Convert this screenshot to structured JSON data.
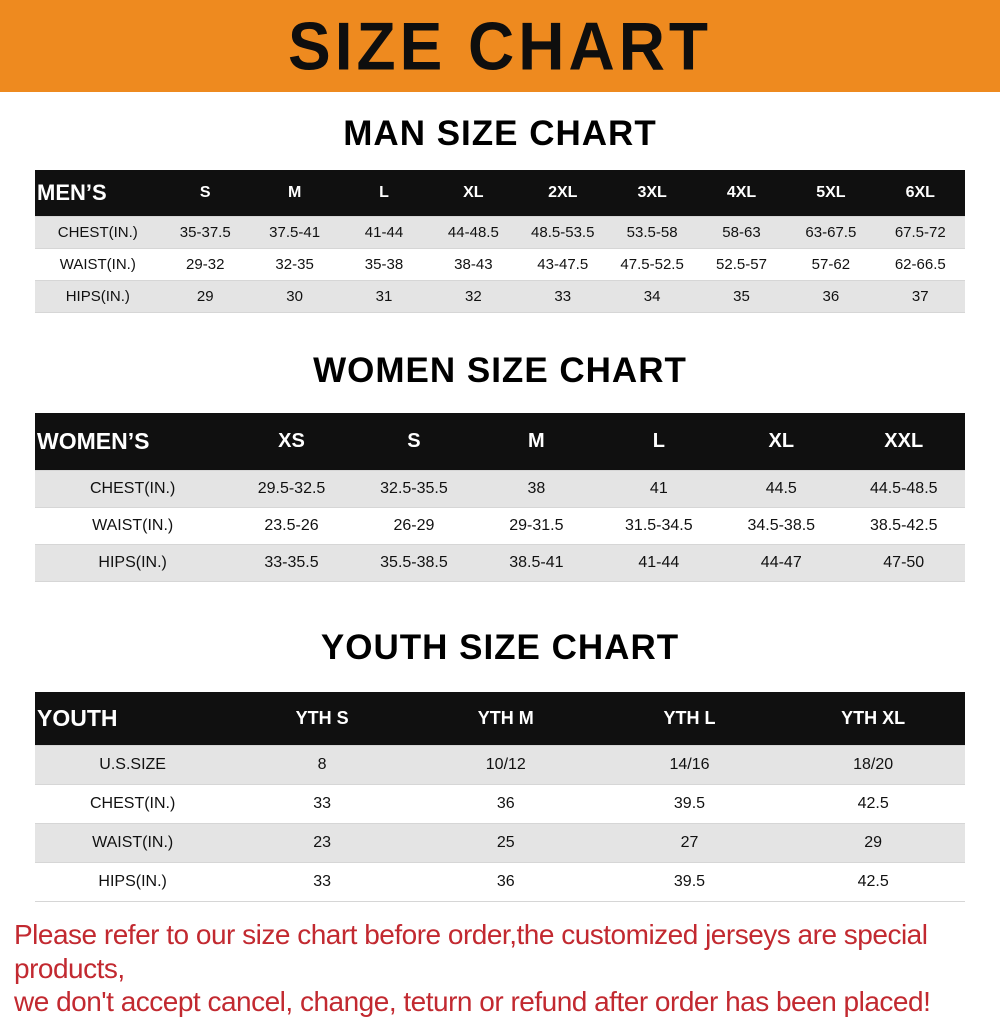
{
  "banner": {
    "title": "SIZE CHART"
  },
  "sections": [
    {
      "heading": "MAN SIZE CHART",
      "table": {
        "header": [
          "MEN’S",
          "S",
          "M",
          "L",
          "XL",
          "2XL",
          "3XL",
          "4XL",
          "5XL",
          "6XL"
        ],
        "rows": [
          [
            "CHEST(IN.)",
            "35-37.5",
            "37.5-41",
            "41-44",
            "44-48.5",
            "48.5-53.5",
            "53.5-58",
            "58-63",
            "63-67.5",
            "67.5-72"
          ],
          [
            "WAIST(IN.)",
            "29-32",
            "32-35",
            "35-38",
            "38-43",
            "43-47.5",
            "47.5-52.5",
            "52.5-57",
            "57-62",
            "62-66.5"
          ],
          [
            "HIPS(IN.)",
            "29",
            "30",
            "31",
            "32",
            "33",
            "34",
            "35",
            "36",
            "37"
          ]
        ]
      }
    },
    {
      "heading": "WOMEN SIZE CHART",
      "table": {
        "header": [
          "WOMEN’S",
          "XS",
          "S",
          "M",
          "L",
          "XL",
          "XXL"
        ],
        "rows": [
          [
            "CHEST(IN.)",
            "29.5-32.5",
            "32.5-35.5",
            "38",
            "41",
            "44.5",
            "44.5-48.5"
          ],
          [
            "WAIST(IN.)",
            "23.5-26",
            "26-29",
            "29-31.5",
            "31.5-34.5",
            "34.5-38.5",
            "38.5-42.5"
          ],
          [
            "HIPS(IN.)",
            "33-35.5",
            "35.5-38.5",
            "38.5-41",
            "41-44",
            "44-47",
            "47-50"
          ]
        ]
      }
    },
    {
      "heading": "YOUTH SIZE CHART",
      "table": {
        "header": [
          "YOUTH",
          "YTH S",
          "YTH M",
          "YTH L",
          "YTH XL"
        ],
        "rows": [
          [
            "U.S.SIZE",
            "8",
            "10/12",
            "14/16",
            "18/20"
          ],
          [
            "CHEST(IN.)",
            "33",
            "36",
            "39.5",
            "42.5"
          ],
          [
            "WAIST(IN.)",
            "23",
            "25",
            "27",
            "29"
          ],
          [
            "HIPS(IN.)",
            "33",
            "36",
            "39.5",
            "42.5"
          ]
        ]
      }
    }
  ],
  "footer": {
    "line1": "Please refer to our size chart before order,the customized jerseys are special products,",
    "line2": "we don't accept cancel, change, teturn or refund after order has been placed!"
  },
  "colors": {
    "banner_bg": "#EE8A1F",
    "table_header_bg": "#101010",
    "row_stripe": "#E4E4E4",
    "footer_red": "#C22930"
  }
}
